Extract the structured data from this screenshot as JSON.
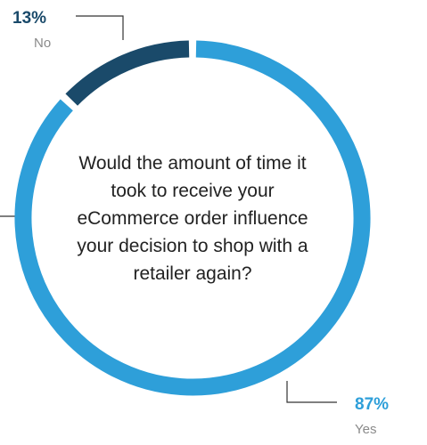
{
  "chart_data": {
    "type": "donut",
    "title": "Would the amount of time it took to receive your eCommerce order influence your decision to shop with a retailer again?",
    "categories": [
      "Yes",
      "No"
    ],
    "values": [
      87,
      13
    ],
    "value_labels": [
      "87%",
      "13%"
    ],
    "colors": [
      "#2e9fd9",
      "#1a4a6a"
    ]
  }
}
